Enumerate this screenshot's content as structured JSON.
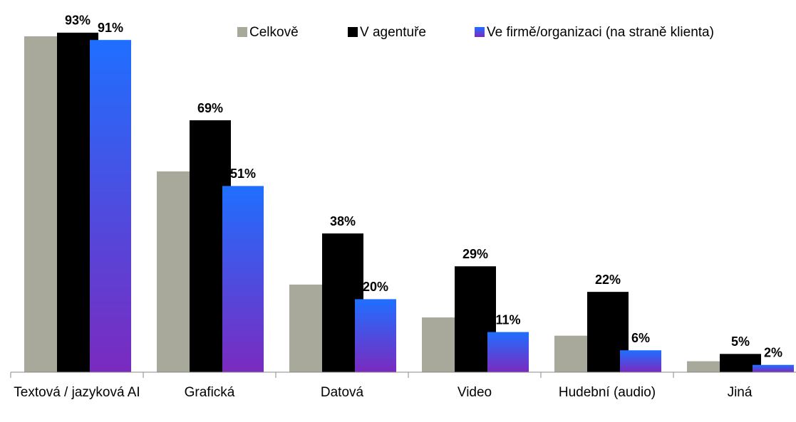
{
  "chart_data": {
    "type": "bar",
    "categories": [
      "Textová / jazyková AI",
      "Grafická",
      "Datová",
      "Video",
      "Hudební (audio)",
      "Jiná"
    ],
    "series": [
      {
        "name": "Celkově",
        "color": "#a9a99b",
        "values": [
          92,
          55,
          24,
          15,
          10,
          3
        ]
      },
      {
        "name": "V agentuře",
        "color": "#000000",
        "values": [
          93,
          69,
          38,
          29,
          22,
          5
        ],
        "value_labels": [
          "93%",
          "69%",
          "38%",
          "29%",
          "22%",
          "5%"
        ]
      },
      {
        "name": "Ve firmě/organizaci (na straně klienta)",
        "color": "#1f6fff",
        "values": [
          91,
          51,
          20,
          11,
          6,
          2
        ],
        "value_labels": [
          "91%",
          "51%",
          "20%",
          "11%",
          "6%",
          "2%"
        ]
      }
    ],
    "ylim": [
      0,
      100
    ]
  }
}
